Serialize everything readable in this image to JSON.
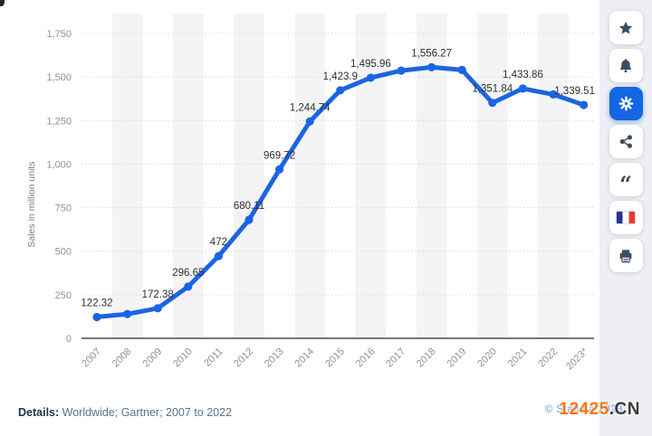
{
  "chart_data": {
    "type": "line",
    "title": "",
    "ylabel": "Sales in million units",
    "xlabel": "",
    "x": [
      "2007",
      "2008",
      "2009",
      "2010",
      "2011",
      "2012",
      "2013",
      "2014",
      "2015",
      "2016",
      "2017",
      "2018",
      "2019",
      "2020",
      "2021",
      "2022",
      "2023*"
    ],
    "values": [
      122.32,
      139.29,
      172.38,
      296.65,
      472,
      680.11,
      969.72,
      1244.74,
      1423.9,
      1495.96,
      1536.54,
      1556.27,
      1540.66,
      1351.84,
      1433.86,
      1400,
      1339.51
    ],
    "point_labels": [
      "122.32",
      null,
      "172.38",
      "296.65",
      "472",
      "680.11",
      "969.72",
      "1,244.74",
      "1,423.9",
      "1,495.96",
      null,
      "1,556.27",
      null,
      "1,351.84",
      "1,433.86",
      null,
      "1,339.51"
    ],
    "y_ticks": [
      0,
      250,
      500,
      750,
      1000,
      1250,
      1500,
      1750
    ],
    "y_tick_labels": [
      "0",
      "250",
      "500",
      "750",
      "1,000",
      "1,250",
      "1,500",
      "1,750"
    ],
    "ylim": [
      0,
      1750
    ],
    "grid": "horizontal-dotted",
    "legend": "none",
    "line_color": "#1b64e4",
    "stripe_color": "#f4f4f6",
    "axis_color": "#4a4b4d",
    "tick_text_color": "#8f9194",
    "label_text_color": "#2e2e2e"
  },
  "sidebar": {
    "background": "#edeff4",
    "active_color": "#1566e2",
    "icon_color": "#3d4e63",
    "quote_glyph": "“",
    "buttons": [
      {
        "name": "favorite-star",
        "active": false
      },
      {
        "name": "notifications-bell",
        "active": false
      },
      {
        "name": "settings-gear",
        "active": true
      },
      {
        "name": "share",
        "active": false
      },
      {
        "name": "citation-quote",
        "active": false
      },
      {
        "name": "language-flag-french",
        "active": false
      },
      {
        "name": "print",
        "active": false
      }
    ]
  },
  "footer": {
    "details_label": "Details:",
    "details_value": "Worldwide; Gartner; 2007 to 2022",
    "copyright": "© Statista 2023",
    "watermark_primary": "12425",
    "watermark_suffix": ".CN"
  }
}
